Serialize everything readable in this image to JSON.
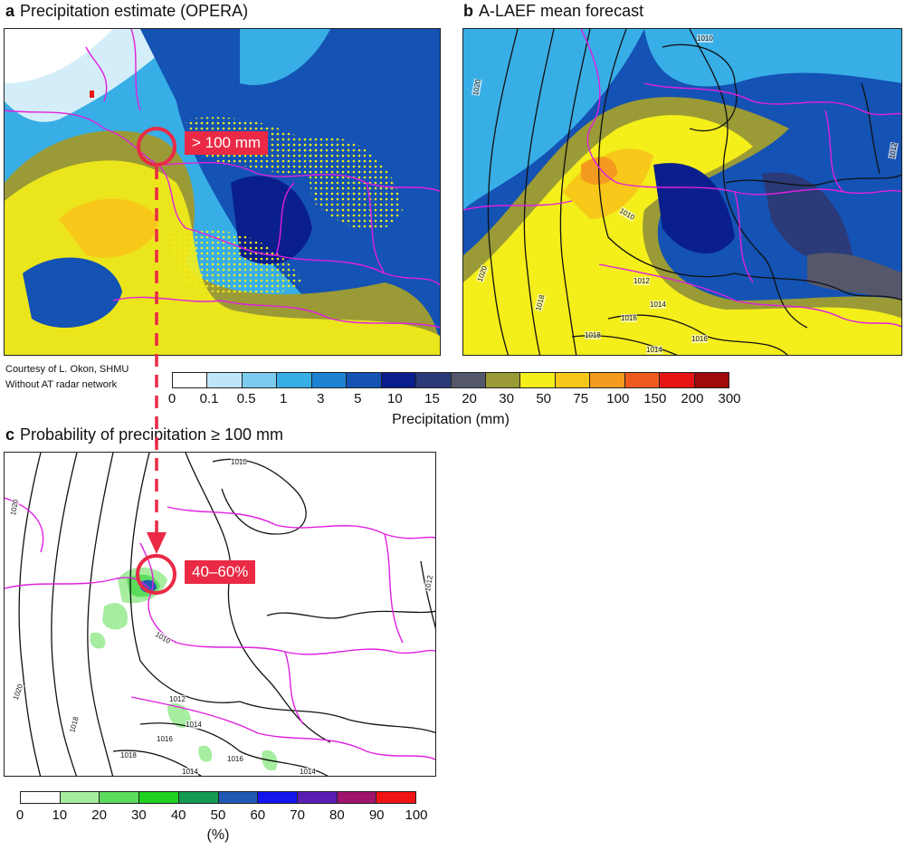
{
  "panel_a": {
    "letter": "a",
    "title": "Precipitation estimate (OPERA)",
    "credit_line1": "Courtesy of L. Okon, SHMU",
    "credit_line2": "Without AT radar network",
    "callout": "> 100 mm"
  },
  "panel_b": {
    "letter": "b",
    "title": "A-LAEF mean forecast",
    "isobar_labels": [
      "1010",
      "1020",
      "1010",
      "1012",
      "1014",
      "1016",
      "1018",
      "1018",
      "1014",
      "1016",
      "1012",
      "1020"
    ]
  },
  "panel_c": {
    "letter": "c",
    "title": "Probability of precipitation ≥ 100 mm",
    "callout": "40–60%",
    "isobar_labels": [
      "1010",
      "1020",
      "1012",
      "1010",
      "1014",
      "1016",
      "1018",
      "1018",
      "1014",
      "1016",
      "1014",
      "1012",
      "1020"
    ]
  },
  "precip_colorbar": {
    "label": "Precipitation (mm)",
    "ticks": [
      "0",
      "0.1",
      "0.5",
      "1",
      "3",
      "5",
      "10",
      "15",
      "20",
      "30",
      "50",
      "75",
      "100",
      "150",
      "200",
      "300"
    ],
    "colors": [
      "#ffffff",
      "#bfe6f7",
      "#7ccbef",
      "#38aee6",
      "#1e82d2",
      "#1452b4",
      "#0a1e8c",
      "#2b3a78",
      "#55586a",
      "#9a9a36",
      "#f4ee1a",
      "#f7c81a",
      "#f49a1e",
      "#ee5a1e",
      "#e61414",
      "#a00a0a"
    ]
  },
  "prob_colorbar": {
    "label": "(%)",
    "ticks": [
      "0",
      "10",
      "20",
      "30",
      "40",
      "50",
      "60",
      "70",
      "80",
      "90",
      "100"
    ],
    "colors": [
      "#ffffff",
      "#a6eda0",
      "#5cdc5c",
      "#1ed21e",
      "#149a50",
      "#1e5ab4",
      "#1414ee",
      "#5a1eb4",
      "#a0146e",
      "#f01414"
    ]
  }
}
